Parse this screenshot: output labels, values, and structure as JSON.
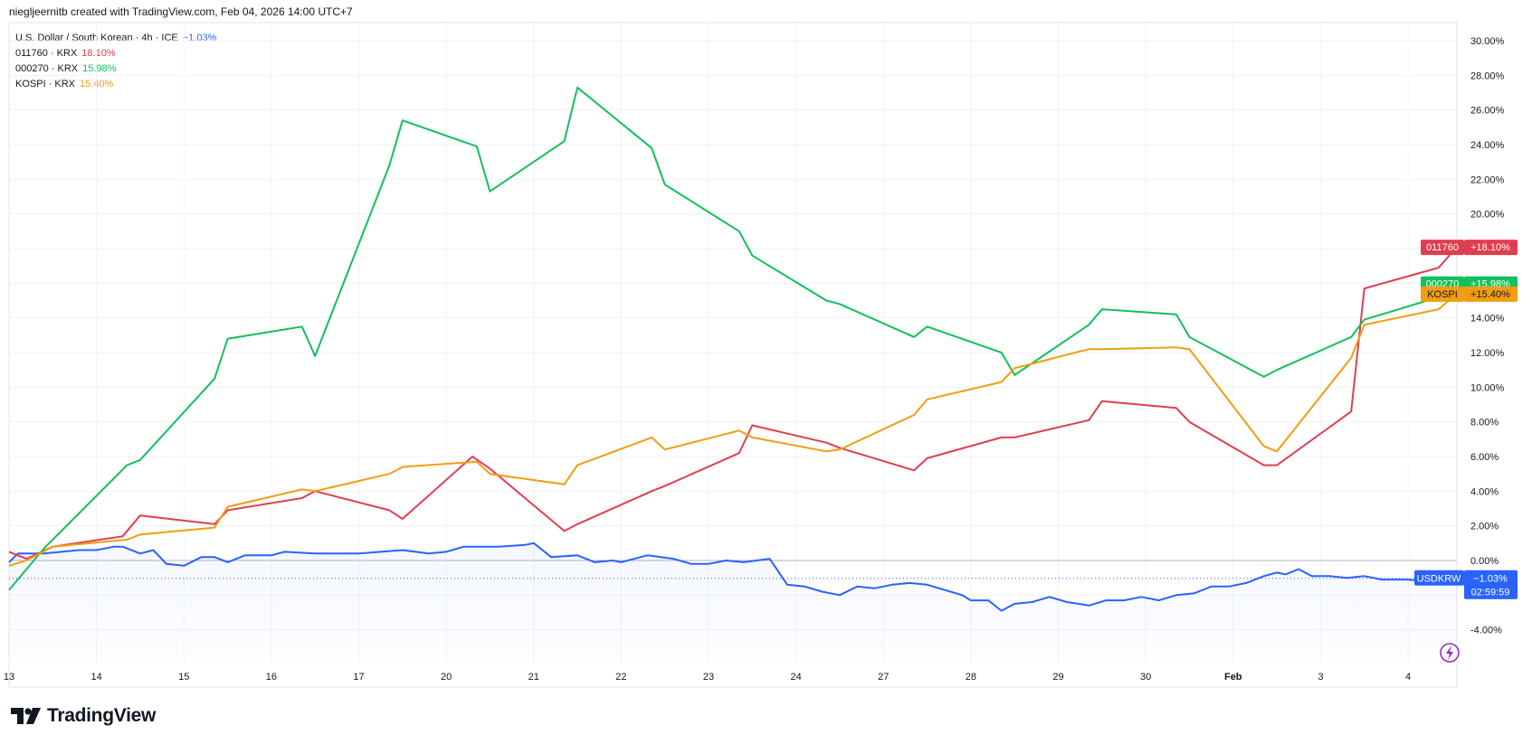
{
  "header": {
    "text": "niegljeernitb created with TradingView.com, Feb 04, 2026 14:00 UTC+7"
  },
  "legend": [
    {
      "name": "U.S. Dollar / South Korean · 4h · ICE",
      "pct": "−1.03%",
      "color": "#2962ff"
    },
    {
      "name": "011760 · KRX",
      "pct": "18.10%",
      "color": "#e03e50"
    },
    {
      "name": "000270 · KRX",
      "pct": "15.98%",
      "color": "#12c05c"
    },
    {
      "name": "KOSPI · KRX",
      "pct": "15.40%",
      "color": "#f29d11"
    }
  ],
  "price_labels": [
    {
      "ticker": "011760",
      "value": "+18.10%",
      "color": "#e03e50",
      "y": 18.1
    },
    {
      "ticker": "000270",
      "value": "+15.98%",
      "color": "#12c05c",
      "y": 15.98
    },
    {
      "ticker": "KOSPI",
      "value": "+15.40%",
      "color": "#f29d11",
      "y": 15.4
    },
    {
      "ticker": "USDKRW",
      "value": "−1.03%",
      "extra": "02:59:59",
      "color": "#2962ff",
      "y": -1.03
    }
  ],
  "footer": {
    "brand": "TradingView",
    "logo_text": "TV"
  },
  "chart_data": {
    "type": "line",
    "x_ticks": [
      {
        "label": "13",
        "x": 0,
        "bold": false
      },
      {
        "label": "14",
        "x": 1,
        "bold": false
      },
      {
        "label": "15",
        "x": 2,
        "bold": false
      },
      {
        "label": "16",
        "x": 3,
        "bold": false
      },
      {
        "label": "17",
        "x": 4,
        "bold": false
      },
      {
        "label": "20",
        "x": 5,
        "bold": false
      },
      {
        "label": "21",
        "x": 6,
        "bold": false
      },
      {
        "label": "22",
        "x": 7,
        "bold": false
      },
      {
        "label": "23",
        "x": 8,
        "bold": false
      },
      {
        "label": "24",
        "x": 9,
        "bold": false
      },
      {
        "label": "27",
        "x": 10,
        "bold": false
      },
      {
        "label": "28",
        "x": 11,
        "bold": false
      },
      {
        "label": "29",
        "x": 12,
        "bold": false
      },
      {
        "label": "30",
        "x": 13,
        "bold": false
      },
      {
        "label": "Feb",
        "x": 14,
        "bold": true
      },
      {
        "label": "3",
        "x": 15,
        "bold": false
      },
      {
        "label": "4",
        "x": 16,
        "bold": false
      }
    ],
    "y_ticks": [
      30,
      28,
      26,
      24,
      22,
      20,
      14,
      12,
      10,
      8,
      6,
      4,
      2,
      0,
      -4
    ],
    "y_unit": "%",
    "ylim": [
      -5.4,
      31
    ],
    "series": [
      {
        "key": "usdkrw",
        "color": "#2962ff",
        "points": [
          [
            -0.2,
            -0.1
          ],
          [
            0.1,
            0.4
          ],
          [
            0.4,
            0.4
          ],
          [
            0.6,
            0.5
          ],
          [
            0.8,
            0.6
          ],
          [
            1.0,
            0.6
          ],
          [
            1.2,
            0.8
          ],
          [
            1.3,
            0.8
          ],
          [
            1.5,
            0.4
          ],
          [
            1.65,
            0.6
          ],
          [
            1.8,
            -0.2
          ],
          [
            2.0,
            -0.3
          ],
          [
            2.2,
            0.2
          ],
          [
            2.35,
            0.2
          ],
          [
            2.5,
            -0.1
          ],
          [
            2.7,
            0.3
          ],
          [
            3.0,
            0.3
          ],
          [
            3.15,
            0.5
          ],
          [
            3.5,
            0.4
          ],
          [
            4.0,
            0.4
          ],
          [
            4.5,
            0.6
          ],
          [
            4.8,
            0.4
          ],
          [
            5.0,
            0.5
          ],
          [
            5.2,
            0.8
          ],
          [
            5.4,
            0.8
          ],
          [
            5.6,
            0.8
          ],
          [
            5.9,
            0.9
          ],
          [
            6.0,
            1.0
          ],
          [
            6.2,
            0.2
          ],
          [
            6.5,
            0.3
          ],
          [
            6.7,
            -0.1
          ],
          [
            6.9,
            0.0
          ],
          [
            7.0,
            -0.1
          ],
          [
            7.3,
            0.3
          ],
          [
            7.6,
            0.1
          ],
          [
            7.8,
            -0.2
          ],
          [
            8.0,
            -0.2
          ],
          [
            8.2,
            0.0
          ],
          [
            8.4,
            -0.1
          ],
          [
            8.7,
            0.1
          ],
          [
            8.9,
            -1.4
          ],
          [
            9.1,
            -1.5
          ],
          [
            9.3,
            -1.8
          ],
          [
            9.5,
            -2.0
          ],
          [
            9.7,
            -1.5
          ],
          [
            9.9,
            -1.6
          ],
          [
            10.1,
            -1.4
          ],
          [
            10.3,
            -1.3
          ],
          [
            10.5,
            -1.4
          ],
          [
            10.7,
            -1.7
          ],
          [
            10.9,
            -2.0
          ],
          [
            11.0,
            -2.3
          ],
          [
            11.2,
            -2.3
          ],
          [
            11.35,
            -2.9
          ],
          [
            11.5,
            -2.5
          ],
          [
            11.7,
            -2.4
          ],
          [
            11.9,
            -2.1
          ],
          [
            12.1,
            -2.4
          ],
          [
            12.35,
            -2.6
          ],
          [
            12.55,
            -2.3
          ],
          [
            12.75,
            -2.3
          ],
          [
            12.95,
            -2.1
          ],
          [
            13.15,
            -2.3
          ],
          [
            13.35,
            -2.0
          ],
          [
            13.55,
            -1.9
          ],
          [
            13.75,
            -1.5
          ],
          [
            13.95,
            -1.5
          ],
          [
            14.15,
            -1.3
          ],
          [
            14.35,
            -0.9
          ],
          [
            14.5,
            -0.7
          ],
          [
            14.6,
            -0.8
          ],
          [
            14.75,
            -0.5
          ],
          [
            14.9,
            -0.9
          ],
          [
            15.1,
            -0.9
          ],
          [
            15.3,
            -1.0
          ],
          [
            15.5,
            -0.9
          ],
          [
            15.7,
            -1.1
          ],
          [
            16.0,
            -1.1
          ],
          [
            16.2,
            -1.2
          ],
          [
            16.5,
            -1.0
          ],
          [
            16.7,
            -1.03
          ]
        ]
      },
      {
        "key": "s011760",
        "color": "#e03e50",
        "points": [
          [
            -0.2,
            0.5
          ],
          [
            0.2,
            0.1
          ],
          [
            0.5,
            0.8
          ],
          [
            1.3,
            1.4
          ],
          [
            1.5,
            2.6
          ],
          [
            2.35,
            2.1
          ],
          [
            2.5,
            2.9
          ],
          [
            3.35,
            3.6
          ],
          [
            3.5,
            4.0
          ],
          [
            4.35,
            2.9
          ],
          [
            4.5,
            2.4
          ],
          [
            5.3,
            6.0
          ],
          [
            5.5,
            5.3
          ],
          [
            6.35,
            1.7
          ],
          [
            6.5,
            2.1
          ],
          [
            7.35,
            4.0
          ],
          [
            7.5,
            4.3
          ],
          [
            8.35,
            6.2
          ],
          [
            8.5,
            7.8
          ],
          [
            9.35,
            6.8
          ],
          [
            9.5,
            6.5
          ],
          [
            10.35,
            5.2
          ],
          [
            10.5,
            5.9
          ],
          [
            11.35,
            7.1
          ],
          [
            11.5,
            7.1
          ],
          [
            12.35,
            8.1
          ],
          [
            12.5,
            9.2
          ],
          [
            13.35,
            8.8
          ],
          [
            13.5,
            8.0
          ],
          [
            14.35,
            5.5
          ],
          [
            14.5,
            5.5
          ],
          [
            15.35,
            8.6
          ],
          [
            15.5,
            15.7
          ],
          [
            16.35,
            16.9
          ],
          [
            16.6,
            18.1
          ]
        ]
      },
      {
        "key": "s000270",
        "color": "#12c05c",
        "points": [
          [
            -0.1,
            -1.7
          ],
          [
            0.4,
            0.7
          ],
          [
            1.35,
            5.5
          ],
          [
            1.5,
            5.8
          ],
          [
            2.35,
            10.5
          ],
          [
            2.5,
            12.8
          ],
          [
            3.35,
            13.5
          ],
          [
            3.5,
            11.8
          ],
          [
            4.35,
            22.8
          ],
          [
            4.5,
            25.4
          ],
          [
            5.35,
            23.9
          ],
          [
            5.5,
            21.3
          ],
          [
            6.35,
            24.2
          ],
          [
            6.5,
            27.3
          ],
          [
            7.35,
            23.8
          ],
          [
            7.5,
            21.7
          ],
          [
            8.35,
            19.0
          ],
          [
            8.5,
            17.6
          ],
          [
            9.35,
            15.0
          ],
          [
            9.5,
            14.8
          ],
          [
            10.35,
            12.9
          ],
          [
            10.5,
            13.5
          ],
          [
            11.35,
            12.0
          ],
          [
            11.5,
            10.7
          ],
          [
            12.35,
            13.6
          ],
          [
            12.5,
            14.5
          ],
          [
            13.35,
            14.2
          ],
          [
            13.5,
            12.9
          ],
          [
            14.35,
            10.6
          ],
          [
            14.5,
            11.0
          ],
          [
            15.35,
            12.9
          ],
          [
            15.5,
            13.9
          ],
          [
            16.35,
            15.2
          ],
          [
            16.6,
            15.98
          ]
        ]
      },
      {
        "key": "kospi",
        "color": "#f29d11",
        "points": [
          [
            -0.2,
            -0.3
          ],
          [
            0.2,
            0.0
          ],
          [
            0.5,
            0.8
          ],
          [
            1.35,
            1.2
          ],
          [
            1.5,
            1.5
          ],
          [
            2.35,
            1.9
          ],
          [
            2.5,
            3.1
          ],
          [
            3.35,
            4.1
          ],
          [
            3.5,
            4.0
          ],
          [
            4.35,
            5.0
          ],
          [
            4.5,
            5.4
          ],
          [
            5.35,
            5.7
          ],
          [
            5.5,
            5.0
          ],
          [
            6.35,
            4.4
          ],
          [
            6.5,
            5.5
          ],
          [
            7.35,
            7.1
          ],
          [
            7.5,
            6.4
          ],
          [
            8.35,
            7.5
          ],
          [
            8.5,
            7.1
          ],
          [
            9.35,
            6.3
          ],
          [
            9.5,
            6.4
          ],
          [
            10.35,
            8.4
          ],
          [
            10.5,
            9.3
          ],
          [
            11.35,
            10.3
          ],
          [
            11.5,
            11.1
          ],
          [
            12.35,
            12.2
          ],
          [
            12.5,
            12.2
          ],
          [
            13.35,
            12.3
          ],
          [
            13.5,
            12.2
          ],
          [
            14.35,
            6.6
          ],
          [
            14.5,
            6.3
          ],
          [
            15.35,
            11.7
          ],
          [
            15.5,
            13.6
          ],
          [
            16.35,
            14.5
          ],
          [
            16.6,
            15.4
          ]
        ]
      }
    ]
  }
}
